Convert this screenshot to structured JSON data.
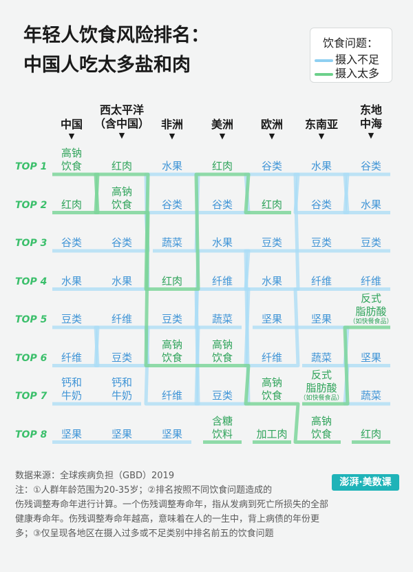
{
  "title_line1": "年轻人饮食风险排名：",
  "title_line2": "中国人吃太多盐和肉",
  "legend": {
    "title": "饮食问题：",
    "items": [
      {
        "label": "摄入不足",
        "color": "#8fd0f2"
      },
      {
        "label": "摄入太多",
        "color": "#6cd08b"
      }
    ]
  },
  "brand": "澎湃·美数课",
  "footer": {
    "source": "数据来源：全球疾病负担（GBD）2019",
    "note_lines": [
      "注：①人群年龄范围为20-35岁；②排名按照不同饮食问题造成的",
      "伤残调整寿命年进行计算。一个伤残调整寿命年，指从发病到死亡所损失的全部",
      "健康寿命年。伤残调整寿命年越高，意味着在人的一生中，背上病债的年份更",
      "多；③仅呈现各地区在摄入过多或不足类别中排名前五的饮食问题"
    ]
  },
  "chart_data": {
    "type": "table",
    "title": "年轻人饮食风险排名：中国人吃太多盐和肉",
    "ranks": [
      "TOP 1",
      "TOP 2",
      "TOP 3",
      "TOP 4",
      "TOP 5",
      "TOP 6",
      "TOP 7",
      "TOP 8"
    ],
    "regions": [
      {
        "name": "中国",
        "items": [
          {
            "label": "高钠\n饮食",
            "type": "excess"
          },
          {
            "label": "红肉",
            "type": "excess"
          },
          {
            "label": "谷类",
            "type": "deficient"
          },
          {
            "label": "水果",
            "type": "deficient"
          },
          {
            "label": "豆类",
            "type": "deficient"
          },
          {
            "label": "纤维",
            "type": "deficient"
          },
          {
            "label": "钙和\n牛奶",
            "type": "deficient"
          },
          {
            "label": "坚果",
            "type": "deficient"
          }
        ]
      },
      {
        "name": "西太平洋\n（含中国）",
        "items": [
          {
            "label": "红肉",
            "type": "excess"
          },
          {
            "label": "高钠\n饮食",
            "type": "excess"
          },
          {
            "label": "谷类",
            "type": "deficient"
          },
          {
            "label": "水果",
            "type": "deficient"
          },
          {
            "label": "纤维",
            "type": "deficient"
          },
          {
            "label": "豆类",
            "type": "deficient"
          },
          {
            "label": "钙和\n牛奶",
            "type": "deficient"
          },
          {
            "label": "坚果",
            "type": "deficient"
          }
        ]
      },
      {
        "name": "非洲",
        "items": [
          {
            "label": "水果",
            "type": "deficient"
          },
          {
            "label": "谷类",
            "type": "deficient"
          },
          {
            "label": "蔬菜",
            "type": "deficient"
          },
          {
            "label": "红肉",
            "type": "excess"
          },
          {
            "label": "豆类",
            "type": "deficient"
          },
          {
            "label": "高钠\n饮食",
            "type": "excess"
          },
          {
            "label": "纤维",
            "type": "deficient"
          },
          {
            "label": "坚果",
            "type": "deficient"
          }
        ]
      },
      {
        "name": "美洲",
        "items": [
          {
            "label": "红肉",
            "type": "excess"
          },
          {
            "label": "谷类",
            "type": "deficient"
          },
          {
            "label": "水果",
            "type": "deficient"
          },
          {
            "label": "纤维",
            "type": "deficient"
          },
          {
            "label": "蔬菜",
            "type": "deficient"
          },
          {
            "label": "高钠\n饮食",
            "type": "excess"
          },
          {
            "label": "豆类",
            "type": "deficient"
          },
          {
            "label": "含糖\n饮料",
            "type": "excess"
          }
        ]
      },
      {
        "name": "欧洲",
        "items": [
          {
            "label": "谷类",
            "type": "deficient"
          },
          {
            "label": "红肉",
            "type": "excess"
          },
          {
            "label": "豆类",
            "type": "deficient"
          },
          {
            "label": "水果",
            "type": "deficient"
          },
          {
            "label": "坚果",
            "type": "deficient"
          },
          {
            "label": "纤维",
            "type": "deficient"
          },
          {
            "label": "高钠\n饮食",
            "type": "excess"
          },
          {
            "label": "加工肉",
            "type": "excess"
          }
        ]
      },
      {
        "name": "东南亚",
        "items": [
          {
            "label": "水果",
            "type": "deficient"
          },
          {
            "label": "谷类",
            "type": "deficient"
          },
          {
            "label": "豆类",
            "type": "deficient"
          },
          {
            "label": "纤维",
            "type": "deficient"
          },
          {
            "label": "坚果",
            "type": "deficient"
          },
          {
            "label": "蔬菜",
            "type": "deficient"
          },
          {
            "label": "反式\n脂肪酸",
            "note": "（如快餐食品）",
            "type": "excess"
          },
          {
            "label": "高钠\n饮食",
            "type": "excess"
          }
        ]
      },
      {
        "name": "东地\n中海",
        "items": [
          {
            "label": "谷类",
            "type": "deficient"
          },
          {
            "label": "水果",
            "type": "deficient"
          },
          {
            "label": "豆类",
            "type": "deficient"
          },
          {
            "label": "纤维",
            "type": "deficient"
          },
          {
            "label": "反式\n脂肪酸",
            "note": "（如快餐食品）",
            "type": "excess"
          },
          {
            "label": "坚果",
            "type": "deficient"
          },
          {
            "label": "蔬菜",
            "type": "deficient"
          },
          {
            "label": "红肉",
            "type": "excess"
          }
        ]
      }
    ]
  }
}
